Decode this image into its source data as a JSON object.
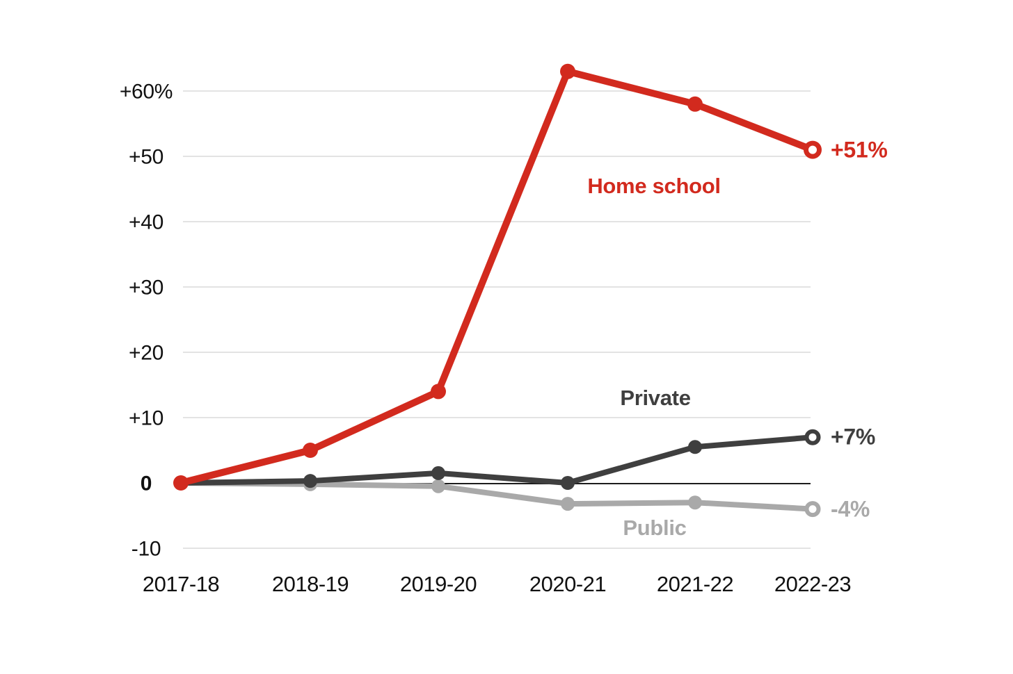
{
  "chart_data": {
    "type": "line",
    "x_categories": [
      "2017-18",
      "2018-19",
      "2019-20",
      "2020-21",
      "2021-22",
      "2022-23"
    ],
    "y_axis": {
      "tick_values": [
        60,
        50,
        40,
        30,
        20,
        10,
        0,
        -10
      ],
      "tick_labels": [
        "+60%",
        "+50",
        "+40",
        "+30",
        "+20",
        "+10",
        "0",
        "-10"
      ],
      "range": [
        -10,
        65
      ],
      "unit": "%"
    },
    "series": [
      {
        "name": "Home school",
        "color": "#d22a1e",
        "values": [
          0,
          5,
          14,
          63,
          58,
          51
        ],
        "end_label": "+51%"
      },
      {
        "name": "Private",
        "color": "#3f3f3f",
        "values": [
          0,
          0.3,
          1.5,
          0,
          5.5,
          7
        ],
        "end_label": "+7%"
      },
      {
        "name": "Public",
        "color": "#a9a9a9",
        "values": [
          0,
          -0.2,
          -0.5,
          -3.2,
          -3,
          -4
        ],
        "end_label": "-4%"
      }
    ],
    "grid": "horizontal",
    "zero_line": true,
    "legend_position": "inline-labels",
    "colors": {
      "gridline": "#e3e3e3",
      "zero_line": "#1c1c1c",
      "axis_text": "#111111",
      "background": "#ffffff"
    }
  }
}
